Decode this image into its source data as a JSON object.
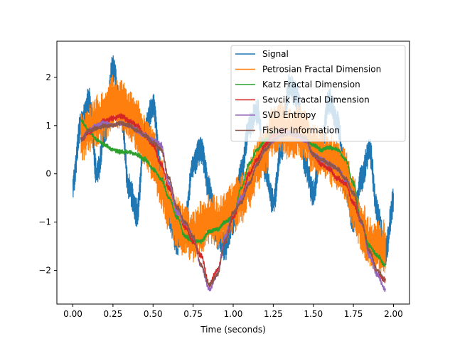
{
  "chart_data": {
    "type": "line",
    "xlabel": "Time (seconds)",
    "ylabel": "",
    "xlim": [
      -0.1,
      2.1
    ],
    "ylim": [
      -2.7,
      2.75
    ],
    "xticks": [
      "0.00",
      "0.25",
      "0.50",
      "0.75",
      "1.00",
      "1.25",
      "1.50",
      "1.75",
      "2.00"
    ],
    "xtick_values": [
      0,
      0.25,
      0.5,
      0.75,
      1.0,
      1.25,
      1.5,
      1.75,
      2.0
    ],
    "yticks": [
      "−2",
      "−1",
      "0",
      "1",
      "2"
    ],
    "ytick_values": [
      -2,
      -1,
      0,
      1,
      2
    ],
    "grid": false,
    "legend_position": "top-right",
    "series": [
      {
        "name": "Signal",
        "color": "#1f77b4",
        "x": [
          0.0,
          0.05,
          0.1,
          0.15,
          0.2,
          0.25,
          0.3,
          0.35,
          0.4,
          0.45,
          0.5,
          0.55,
          0.6,
          0.65,
          0.7,
          0.75,
          0.8,
          0.85,
          0.9,
          0.95,
          1.0,
          1.05,
          1.1,
          1.15,
          1.2,
          1.25,
          1.3,
          1.35,
          1.4,
          1.45,
          1.5,
          1.55,
          1.6,
          1.65,
          1.7,
          1.75,
          1.8,
          1.85,
          1.9,
          1.95,
          2.0
        ],
        "values": [
          -0.2,
          1.0,
          1.5,
          0.0,
          0.9,
          2.2,
          1.3,
          -0.3,
          -0.8,
          0.9,
          1.4,
          0.0,
          -0.9,
          -1.4,
          -1.0,
          0.2,
          0.5,
          -0.3,
          -1.3,
          -1.5,
          -1.0,
          0.0,
          1.0,
          1.3,
          0.1,
          -0.6,
          0.5,
          1.8,
          1.6,
          0.2,
          -0.4,
          0.6,
          1.5,
          1.1,
          -0.2,
          -1.0,
          -0.1,
          0.5,
          -0.8,
          -1.6,
          -0.6
        ],
        "noise": 0.3
      },
      {
        "name": "Petrosian Fractal Dimension",
        "color": "#ff7f0e",
        "x": [
          0.05,
          0.1,
          0.15,
          0.2,
          0.25,
          0.3,
          0.35,
          0.4,
          0.45,
          0.5,
          0.55,
          0.6,
          0.65,
          0.7,
          0.75,
          0.8,
          0.85,
          0.9,
          0.95,
          1.0,
          1.05,
          1.1,
          1.15,
          1.2,
          1.25,
          1.3,
          1.35,
          1.4,
          1.45,
          1.5,
          1.55,
          1.6,
          1.65,
          1.7,
          1.75,
          1.8,
          1.85,
          1.9,
          1.95
        ],
        "values": [
          0.7,
          0.9,
          1.1,
          1.2,
          1.5,
          1.4,
          1.2,
          1.0,
          0.7,
          0.4,
          -0.2,
          -0.7,
          -1.0,
          -1.2,
          -1.3,
          -1.1,
          -0.9,
          -1.0,
          -0.9,
          -0.7,
          -0.5,
          -0.2,
          0.2,
          0.5,
          0.9,
          1.0,
          0.8,
          0.9,
          0.8,
          0.5,
          0.4,
          0.3,
          0.2,
          0.0,
          -0.6,
          -1.1,
          -1.4,
          -1.5,
          -1.5
        ],
        "noise": 0.55
      },
      {
        "name": "Katz Fractal Dimension",
        "color": "#2ca02c",
        "x": [
          0.05,
          0.1,
          0.15,
          0.2,
          0.25,
          0.3,
          0.35,
          0.4,
          0.45,
          0.5,
          0.55,
          0.6,
          0.65,
          0.7,
          0.75,
          0.8,
          0.85,
          0.9,
          0.95,
          1.0,
          1.05,
          1.1,
          1.15,
          1.2,
          1.25,
          1.3,
          1.35,
          1.4,
          1.45,
          1.5,
          1.55,
          1.6,
          1.65,
          1.7,
          1.75,
          1.8,
          1.85,
          1.9,
          1.95
        ],
        "values": [
          1.1,
          0.9,
          0.7,
          0.6,
          0.5,
          0.45,
          0.45,
          0.4,
          0.3,
          0.1,
          -0.1,
          -0.5,
          -0.9,
          -1.3,
          -1.4,
          -1.4,
          -1.2,
          -1.15,
          -1.0,
          -0.9,
          -0.3,
          0.2,
          0.5,
          0.7,
          0.85,
          0.9,
          0.85,
          0.8,
          0.7,
          0.6,
          0.5,
          0.55,
          0.5,
          0.3,
          -0.2,
          -1.0,
          -1.5,
          -1.7,
          -1.9
        ],
        "noise": 0.05
      },
      {
        "name": "Sevcik Fractal Dimension",
        "color": "#d62728",
        "x": [
          0.05,
          0.1,
          0.15,
          0.2,
          0.25,
          0.3,
          0.35,
          0.4,
          0.45,
          0.5,
          0.55,
          0.6,
          0.65,
          0.7,
          0.75,
          0.8,
          0.85,
          0.9,
          0.95,
          1.0,
          1.05,
          1.1,
          1.15,
          1.2,
          1.25,
          1.3,
          1.35,
          1.4,
          1.45,
          1.5,
          1.55,
          1.6,
          1.65,
          1.7,
          1.75,
          1.8,
          1.85,
          1.9,
          1.95
        ],
        "values": [
          0.7,
          0.85,
          1.0,
          1.1,
          1.15,
          1.2,
          1.1,
          1.0,
          0.8,
          0.6,
          0.2,
          -0.3,
          -0.7,
          -1.1,
          -1.4,
          -1.7,
          -2.3,
          -2.0,
          -1.4,
          -0.9,
          -0.5,
          0.0,
          0.3,
          0.6,
          0.8,
          0.9,
          0.85,
          0.8,
          0.7,
          0.4,
          0.2,
          0.1,
          -0.1,
          -0.2,
          -0.6,
          -1.0,
          -1.6,
          -2.1,
          -2.2
        ],
        "noise": 0.06
      },
      {
        "name": "SVD Entropy",
        "color": "#9467bd",
        "x": [
          0.05,
          0.1,
          0.15,
          0.2,
          0.25,
          0.3,
          0.35,
          0.4,
          0.45,
          0.5,
          0.55,
          0.6,
          0.65,
          0.7,
          0.75,
          0.8,
          0.85,
          0.9,
          0.95,
          1.0,
          1.05,
          1.1,
          1.15,
          1.2,
          1.25,
          1.3,
          1.35,
          1.4,
          1.45,
          1.5,
          1.55,
          1.6,
          1.65,
          1.7,
          1.75,
          1.8,
          1.85,
          1.9,
          1.95
        ],
        "values": [
          0.7,
          0.9,
          1.0,
          1.05,
          1.0,
          1.05,
          1.0,
          0.9,
          0.8,
          0.7,
          0.6,
          -0.2,
          -0.8,
          -1.0,
          -1.3,
          -1.9,
          -2.4,
          -2.1,
          -1.3,
          -0.8,
          -0.5,
          -0.2,
          0.2,
          0.5,
          0.7,
          0.8,
          0.85,
          0.8,
          0.7,
          0.4,
          0.3,
          0.2,
          0.1,
          -0.1,
          -0.4,
          -1.0,
          -1.7,
          -2.1,
          -2.4
        ],
        "noise": 0.06
      },
      {
        "name": "Fisher Information",
        "color": "#8c564b",
        "x": [
          0.05,
          0.1,
          0.15,
          0.2,
          0.25,
          0.3,
          0.35,
          0.4,
          0.45,
          0.5,
          0.55,
          0.6,
          0.65,
          0.7,
          0.75,
          0.8,
          0.85,
          0.9,
          0.95,
          1.0,
          1.05,
          1.1,
          1.15,
          1.2,
          1.25,
          1.3,
          1.35,
          1.4,
          1.45,
          1.5,
          1.55,
          1.6,
          1.65,
          1.7,
          1.75,
          1.8,
          1.85,
          1.9,
          1.95
        ],
        "values": [
          0.7,
          0.9,
          0.95,
          1.0,
          1.0,
          1.05,
          1.0,
          0.9,
          0.8,
          0.65,
          0.5,
          -0.1,
          -0.7,
          -1.0,
          -1.3,
          -1.9,
          -2.3,
          -2.1,
          -1.4,
          -0.8,
          -0.6,
          -0.2,
          0.2,
          0.5,
          0.7,
          0.8,
          0.85,
          0.8,
          0.75,
          0.4,
          0.3,
          0.2,
          0.1,
          -0.1,
          -0.4,
          -1.0,
          -1.6,
          -2.0,
          -2.2
        ],
        "noise": 0.05
      }
    ]
  }
}
